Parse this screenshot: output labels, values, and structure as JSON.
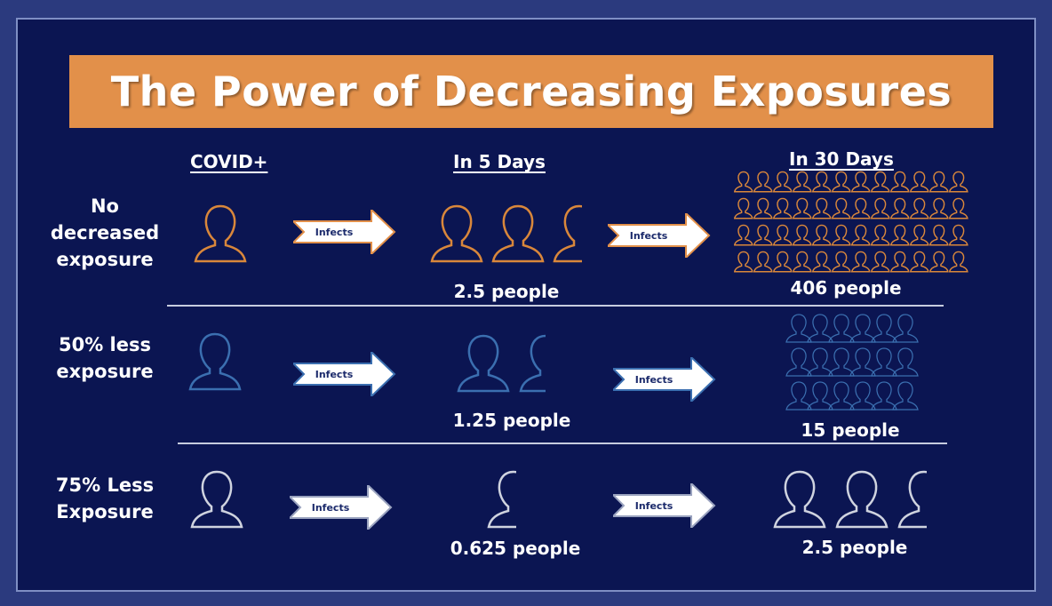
{
  "title": "The Power of Decreasing Exposures",
  "columns": {
    "covid": "COVID+",
    "five_days": "In 5 Days",
    "thirty_days": "In 30 Days"
  },
  "rows": [
    {
      "label_lines": [
        "No",
        "decreased",
        "exposure"
      ],
      "arrow_label": "Infects",
      "five_day_count": "2.5 people",
      "thirty_day_count": "406 people",
      "color": "#d9873b"
    },
    {
      "label_lines": [
        "50% less",
        "exposure"
      ],
      "arrow_label": "Infects",
      "five_day_count": "1.25 people",
      "thirty_day_count": "15 people",
      "color": "#3b6fb0"
    },
    {
      "label_lines": [
        "75% Less",
        "Exposure"
      ],
      "arrow_label": "Infects",
      "five_day_count": "0.625 people",
      "thirty_day_count": "2.5 people",
      "color": "#cfd3df"
    }
  ],
  "colors": {
    "background": "#0b1552",
    "title_bar": "#e2904a",
    "text": "#ffffff"
  },
  "icons": {
    "person": "person-outline-icon",
    "arrow": "right-arrow-icon"
  }
}
